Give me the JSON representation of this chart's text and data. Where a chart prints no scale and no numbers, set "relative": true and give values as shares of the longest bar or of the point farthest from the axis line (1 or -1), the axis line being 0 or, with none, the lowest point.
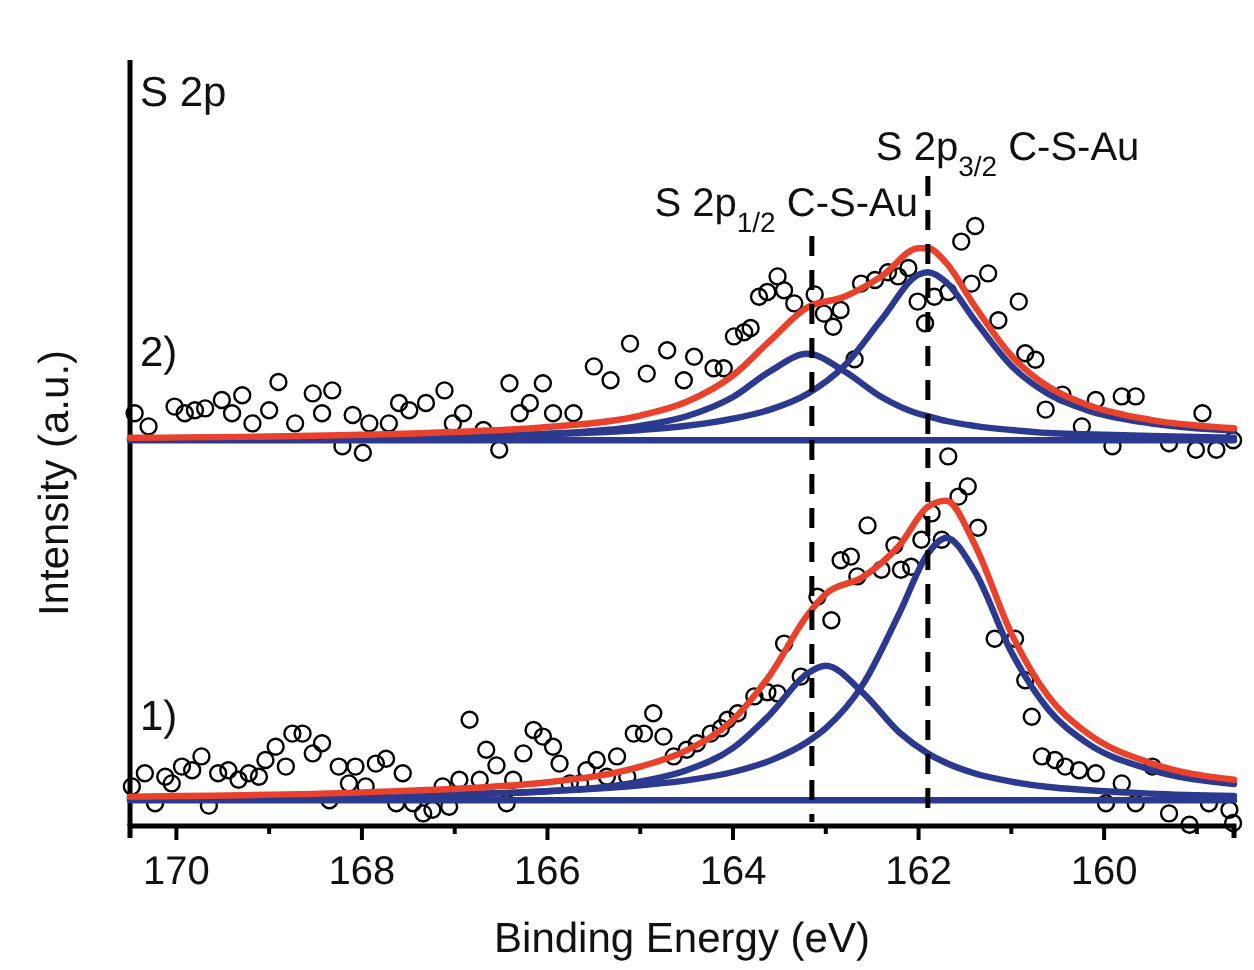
{
  "chart_data": {
    "type": "line",
    "relative": true,
    "xlabel": "Binding Energy (eV)",
    "ylabel": "Intensity (a.u.)",
    "xlim": [
      170.5,
      158.6
    ],
    "xticks": [
      170,
      {
        "value": 169,
        "label": null
      },
      168,
      {
        "value": 167,
        "label": null
      },
      166,
      {
        "value": 165,
        "label": null
      },
      164,
      {
        "value": 163,
        "label": null
      },
      162,
      {
        "value": 161,
        "label": null
      },
      160,
      {
        "value": 159,
        "label": null
      }
    ],
    "annotations": [
      "S 2p",
      "2)",
      "1)"
    ],
    "ref_lines": [
      {
        "axis": "x",
        "value": 163.15,
        "label": "S 2p$_{1/2}$ C-S-Au",
        "color": "#000000",
        "line_style": "dashed"
      },
      {
        "axis": "x",
        "value": 161.9,
        "label": "S 2p$_{3/2}$ C-S-Au",
        "color": "#000000",
        "line_style": "dashed"
      }
    ],
    "series": [
      {
        "type": "scatter",
        "marker": "circle",
        "color": "#000000",
        "x": [
          170.45,
          170.3,
          170.02,
          169.91,
          169.8,
          169.69,
          169.51,
          169.4,
          169.29,
          169.18,
          169.0,
          168.9,
          168.72,
          168.53,
          168.43,
          168.32,
          168.21,
          168.1,
          167.99,
          167.92,
          167.71,
          167.6,
          167.49,
          167.31,
          167.11,
          167.02,
          166.91,
          166.69,
          166.52,
          166.41,
          166.3,
          166.19,
          166.05,
          165.94,
          165.72,
          165.5,
          165.32,
          165.11,
          164.93,
          164.71,
          164.53,
          164.42,
          164.21,
          164.1,
          163.99,
          163.88,
          163.81,
          163.72,
          163.63,
          163.52,
          163.45,
          163.34,
          163.12,
          163.02,
          162.92,
          162.84,
          162.69,
          162.62,
          162.47,
          162.33,
          162.22,
          162.11,
          162.01,
          161.93,
          161.83,
          161.68,
          161.54,
          161.43,
          161.39,
          161.25,
          161.14,
          160.92,
          160.85,
          160.74,
          160.63,
          160.45,
          160.24,
          160.09,
          159.91,
          159.81,
          159.66,
          159.3,
          159.01,
          158.94,
          158.79,
          158.61
        ],
        "values": [
          0.688,
          0.666,
          0.699,
          0.688,
          0.693,
          0.696,
          0.71,
          0.688,
          0.718,
          0.671,
          0.693,
          0.74,
          0.671,
          0.721,
          0.688,
          0.726,
          0.633,
          0.685,
          0.622,
          0.671,
          0.671,
          0.705,
          0.693,
          0.705,
          0.726,
          0.671,
          0.688,
          0.66,
          0.627,
          0.738,
          0.688,
          0.705,
          0.738,
          0.688,
          0.688,
          0.766,
          0.743,
          0.804,
          0.754,
          0.793,
          0.743,
          0.782,
          0.763,
          0.763,
          0.816,
          0.823,
          0.83,
          0.882,
          0.89,
          0.916,
          0.893,
          0.871,
          0.886,
          0.854,
          0.832,
          0.86,
          0.778,
          0.904,
          0.91,
          0.923,
          0.916,
          0.93,
          0.874,
          0.838,
          0.882,
          0.89,
          0.974,
          0.904,
          1.0,
          0.921,
          0.843,
          0.874,
          0.788,
          0.777,
          0.694,
          0.719,
          0.666,
          0.71,
          0.633,
          0.716,
          0.716,
          0.638,
          0.627,
          0.688,
          0.627,
          0.643
        ]
      },
      {
        "marker": "none",
        "color": "#2b3a8f",
        "x": [
          170.5,
          158.6
        ],
        "values": [
          0.643,
          0.643
        ]
      },
      {
        "marker": "none",
        "color": "#2b3a8f",
        "x": [
          170.5,
          168,
          166,
          165,
          164.5,
          164,
          163.6,
          163.2,
          162.8,
          162.4,
          162,
          161.9,
          161.7,
          161.4,
          161,
          160.6,
          160.2,
          159.5,
          158.6
        ],
        "values": [
          0.645,
          0.647,
          0.654,
          0.667,
          0.683,
          0.715,
          0.758,
          0.787,
          0.758,
          0.715,
          0.687,
          0.683,
          0.675,
          0.667,
          0.66,
          0.655,
          0.653,
          0.65,
          0.647
        ]
      },
      {
        "marker": "none",
        "color": "#2b3a8f",
        "x": [
          170.5,
          168,
          166,
          165,
          164.5,
          164,
          163.6,
          163.2,
          162.8,
          162.4,
          162,
          161.9,
          161.7,
          161.4,
          161,
          160.6,
          160.2,
          159.5,
          158.6
        ],
        "values": [
          0.645,
          0.648,
          0.653,
          0.66,
          0.667,
          0.679,
          0.694,
          0.72,
          0.767,
          0.844,
          0.919,
          0.923,
          0.906,
          0.844,
          0.767,
          0.72,
          0.694,
          0.671,
          0.659
        ]
      },
      {
        "marker": "none",
        "color": "#e8412c",
        "x": [
          170.5,
          168,
          166,
          165,
          164.5,
          164,
          163.6,
          163.2,
          162.8,
          162.4,
          162,
          161.9,
          161.7,
          161.4,
          161,
          160.6,
          160.2,
          159.5,
          158.6
        ],
        "values": [
          0.647,
          0.652,
          0.665,
          0.684,
          0.707,
          0.751,
          0.809,
          0.864,
          0.882,
          0.916,
          0.963,
          0.963,
          0.938,
          0.868,
          0.784,
          0.732,
          0.703,
          0.677,
          0.663
        ]
      },
      {
        "type": "scatter",
        "marker": "circle",
        "color": "#000000",
        "x": [
          170.48,
          170.34,
          170.23,
          170.12,
          170.05,
          169.94,
          169.83,
          169.73,
          169.65,
          169.55,
          169.44,
          169.33,
          169.22,
          169.11,
          169.04,
          168.93,
          168.82,
          168.75,
          168.64,
          168.53,
          168.43,
          168.35,
          168.25,
          168.14,
          168.07,
          167.96,
          167.85,
          167.74,
          167.63,
          167.56,
          167.45,
          167.34,
          167.24,
          167.13,
          167.06,
          166.95,
          166.84,
          166.73,
          166.66,
          166.55,
          166.44,
          166.37,
          166.26,
          166.15,
          166.05,
          165.94,
          165.87,
          165.76,
          165.65,
          165.58,
          165.47,
          165.36,
          165.25,
          165.14,
          165.07,
          164.96,
          164.86,
          164.75,
          164.64,
          164.5,
          164.39,
          164.24,
          164.13,
          164.06,
          163.95,
          163.77,
          163.63,
          163.52,
          163.45,
          163.27,
          163.09,
          162.94,
          162.84,
          162.73,
          162.66,
          162.55,
          162.4,
          162.26,
          162.19,
          162.08,
          161.97,
          161.86,
          161.75,
          161.68,
          161.57,
          161.47,
          161.36,
          161.18,
          160.96,
          160.85,
          160.78,
          160.67,
          160.53,
          160.42,
          160.27,
          160.09,
          159.98,
          159.81,
          159.66,
          159.48,
          159.3,
          159.08,
          158.87,
          158.65,
          158.61
        ],
        "values": [
          0.066,
          0.088,
          0.038,
          0.082,
          0.071,
          0.099,
          0.093,
          0.116,
          0.034,
          0.088,
          0.093,
          0.077,
          0.088,
          0.082,
          0.11,
          0.132,
          0.099,
          0.154,
          0.154,
          0.121,
          0.138,
          0.043,
          0.099,
          0.071,
          0.099,
          0.066,
          0.104,
          0.112,
          0.038,
          0.088,
          0.038,
          0.021,
          0.027,
          0.066,
          0.032,
          0.077,
          0.177,
          0.077,
          0.127,
          0.101,
          0.038,
          0.077,
          0.121,
          0.16,
          0.149,
          0.132,
          0.104,
          0.071,
          0.071,
          0.093,
          0.11,
          0.082,
          0.116,
          0.082,
          0.154,
          0.154,
          0.188,
          0.149,
          0.116,
          0.127,
          0.138,
          0.154,
          0.163,
          0.177,
          0.188,
          0.216,
          0.223,
          0.221,
          0.304,
          0.249,
          0.382,
          0.343,
          0.443,
          0.449,
          0.416,
          0.501,
          0.427,
          0.468,
          0.427,
          0.432,
          0.477,
          0.521,
          0.477,
          0.616,
          0.549,
          0.566,
          0.497,
          0.312,
          0.312,
          0.243,
          0.182,
          0.116,
          0.11,
          0.099,
          0.093,
          0.088,
          0.038,
          0.071,
          0.038,
          0.099,
          0.021,
          0.002,
          0.038,
          0.027,
          0.005
        ]
      },
      {
        "marker": "none",
        "color": "#2b3a8f",
        "x": [
          170.5,
          158.6
        ],
        "values": [
          0.043,
          0.043
        ]
      },
      {
        "marker": "none",
        "color": "#2b3a8f",
        "x": [
          170.5,
          168,
          166,
          165,
          164.5,
          164,
          163.6,
          163.2,
          163,
          162.6,
          162.2,
          161.9,
          161.7,
          161.4,
          161,
          160.6,
          160.2,
          159.5,
          158.6
        ],
        "values": [
          0.046,
          0.049,
          0.058,
          0.074,
          0.093,
          0.13,
          0.186,
          0.254,
          0.267,
          0.222,
          0.155,
          0.121,
          0.105,
          0.088,
          0.074,
          0.065,
          0.06,
          0.054,
          0.05
        ]
      },
      {
        "marker": "none",
        "color": "#2b3a8f",
        "x": [
          170.5,
          168,
          166,
          165,
          164.5,
          164,
          163.6,
          163.2,
          163,
          162.6,
          162.2,
          161.9,
          161.7,
          161.4,
          161,
          160.6,
          160.2,
          159.5,
          158.6
        ],
        "values": [
          0.047,
          0.05,
          0.058,
          0.068,
          0.076,
          0.09,
          0.109,
          0.14,
          0.163,
          0.236,
          0.357,
          0.454,
          0.48,
          0.426,
          0.29,
          0.194,
          0.14,
          0.094,
          0.07
        ]
      },
      {
        "marker": "none",
        "color": "#e8412c",
        "x": [
          170.5,
          168,
          166,
          165,
          164.5,
          164,
          163.6,
          163.2,
          163,
          162.6,
          162.2,
          161.9,
          161.7,
          161.4,
          161,
          160.6,
          160.2,
          159.5,
          158.6
        ],
        "values": [
          0.049,
          0.056,
          0.073,
          0.099,
          0.126,
          0.177,
          0.252,
          0.351,
          0.387,
          0.415,
          0.469,
          0.532,
          0.542,
          0.471,
          0.321,
          0.216,
          0.157,
          0.105,
          0.077
        ]
      }
    ]
  }
}
